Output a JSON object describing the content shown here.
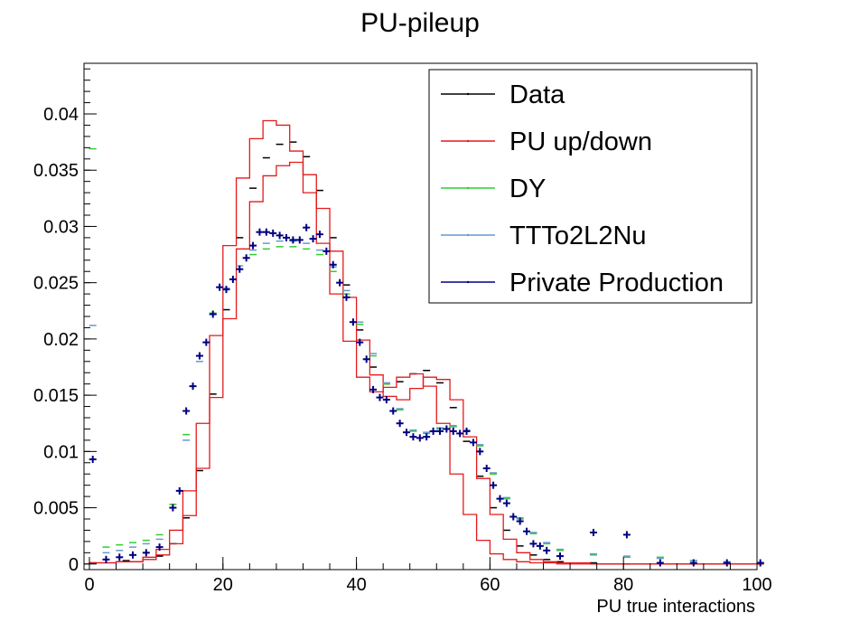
{
  "chart_data": {
    "type": "line",
    "title": "PU-pileup",
    "xlabel": "PU true interactions",
    "ylabel": "",
    "xlim": [
      0,
      100
    ],
    "ylim": [
      -0.0005,
      0.0445
    ],
    "x_ticks": [
      0,
      20,
      40,
      60,
      80,
      100
    ],
    "x_tick_labels": [
      "0",
      "20",
      "40",
      "60",
      "80",
      "100"
    ],
    "y_ticks": [
      0,
      0.005,
      0.01,
      0.015,
      0.02,
      0.025,
      0.03,
      0.035,
      0.04
    ],
    "y_tick_labels": [
      "0",
      "0.005",
      "0.01",
      "0.015",
      "0.02",
      "0.025",
      "0.03",
      "0.035",
      "0.04"
    ],
    "grid": false,
    "legend_position": "top-right",
    "legend": [
      {
        "label": "Data",
        "color": "#000000"
      },
      {
        "label": "PU up/down",
        "color": "#e31a1c"
      },
      {
        "label": "DY",
        "color": "#33cc33"
      },
      {
        "label": "TTTo2L2Nu",
        "color": "#6699cc"
      },
      {
        "label": "Private Production",
        "color": "#000080"
      }
    ],
    "bin_width": 1,
    "series": [
      {
        "name": "Data",
        "style": "markers",
        "color": "#000000",
        "x": [
          0,
          5,
          10,
          12,
          14,
          16,
          18,
          20,
          22,
          24,
          26,
          28,
          30,
          32,
          34,
          36,
          38,
          40,
          42,
          44,
          46,
          48,
          50,
          52,
          54,
          56,
          58,
          60,
          62,
          64,
          66,
          68,
          70,
          75,
          80,
          90,
          100
        ],
        "values": [
          0.0001,
          0.0003,
          0.0007,
          0.0018,
          0.0041,
          0.0083,
          0.0151,
          0.0226,
          0.029,
          0.0334,
          0.0361,
          0.0373,
          0.0375,
          0.0362,
          0.0332,
          0.029,
          0.0248,
          0.0208,
          0.0175,
          0.016,
          0.0162,
          0.0169,
          0.0172,
          0.0161,
          0.0139,
          0.0109,
          0.0078,
          0.005,
          0.003,
          0.0016,
          0.0008,
          0.0004,
          0.0002,
          0.0001,
          0.0,
          0.0,
          0.0
        ]
      },
      {
        "name": "PU up",
        "style": "step",
        "color": "#e31a1c",
        "x": [
          0,
          4,
          8,
          10,
          12,
          14,
          16,
          18,
          20,
          22,
          24,
          26,
          28,
          30,
          32,
          34,
          36,
          38,
          40,
          42,
          44,
          46,
          48,
          50,
          52,
          54,
          56,
          58,
          60,
          62,
          64,
          66,
          68,
          70,
          75,
          80,
          90,
          100
        ],
        "values": [
          0.0001,
          0.0002,
          0.0006,
          0.0013,
          0.003,
          0.0065,
          0.0125,
          0.0203,
          0.0283,
          0.0343,
          0.0378,
          0.0394,
          0.039,
          0.0367,
          0.033,
          0.0285,
          0.024,
          0.0198,
          0.0166,
          0.0153,
          0.0157,
          0.0166,
          0.0169,
          0.0158,
          0.0125,
          0.008,
          0.0044,
          0.0021,
          0.0009,
          0.0004,
          0.0002,
          0.0001,
          0.0001,
          0.0,
          0.0,
          0.0,
          0.0,
          0.0
        ]
      },
      {
        "name": "PU down",
        "style": "step",
        "color": "#e31a1c",
        "x": [
          0,
          4,
          8,
          10,
          12,
          14,
          16,
          18,
          20,
          22,
          24,
          26,
          28,
          30,
          32,
          34,
          36,
          38,
          40,
          42,
          44,
          46,
          48,
          50,
          52,
          54,
          56,
          58,
          60,
          62,
          64,
          66,
          68,
          70,
          75,
          80,
          90,
          100
        ],
        "values": [
          0.0001,
          0.0002,
          0.0004,
          0.0008,
          0.0018,
          0.0043,
          0.0085,
          0.0148,
          0.0218,
          0.028,
          0.0322,
          0.0345,
          0.0354,
          0.0357,
          0.0346,
          0.0316,
          0.0278,
          0.0237,
          0.0199,
          0.0168,
          0.0149,
          0.0146,
          0.0156,
          0.0166,
          0.0164,
          0.0146,
          0.0113,
          0.0076,
          0.0044,
          0.0022,
          0.001,
          0.0004,
          0.0002,
          0.0001,
          0.0,
          0.0,
          0.0,
          0.0
        ]
      },
      {
        "name": "DY",
        "style": "markers",
        "color": "#33cc33",
        "x": [
          0,
          2,
          4,
          6,
          8,
          10,
          12,
          14,
          16,
          18,
          20,
          22,
          24,
          26,
          28,
          30,
          32,
          34,
          36,
          38,
          40,
          42,
          44,
          46,
          48,
          50,
          52,
          54,
          56,
          58,
          60,
          62,
          64,
          66,
          68,
          70,
          75,
          80,
          85,
          90,
          95,
          100
        ],
        "values": [
          0.0369,
          0.0015,
          0.0017,
          0.0019,
          0.0021,
          0.0026,
          0.0053,
          0.0115,
          0.0185,
          0.0223,
          0.0245,
          0.0262,
          0.0275,
          0.028,
          0.0282,
          0.0282,
          0.028,
          0.0275,
          0.026,
          0.024,
          0.0213,
          0.0185,
          0.016,
          0.0137,
          0.0118,
          0.0116,
          0.012,
          0.0122,
          0.0118,
          0.0105,
          0.008,
          0.0058,
          0.004,
          0.0027,
          0.0018,
          0.0012,
          0.0008,
          0.0006,
          0.0006,
          0.0003,
          0.0002,
          0.0001
        ]
      },
      {
        "name": "TTTo2L2Nu",
        "style": "markers",
        "color": "#6699cc",
        "x": [
          0,
          2,
          4,
          6,
          8,
          10,
          12,
          14,
          16,
          18,
          20,
          22,
          24,
          26,
          28,
          30,
          32,
          34,
          36,
          38,
          40,
          42,
          44,
          46,
          48,
          50,
          52,
          54,
          56,
          58,
          60,
          62,
          64,
          66,
          68,
          70,
          75,
          80,
          85,
          90,
          95,
          100
        ],
        "values": [
          0.0212,
          0.001,
          0.0012,
          0.0015,
          0.0018,
          0.0022,
          0.005,
          0.011,
          0.018,
          0.0222,
          0.0245,
          0.0265,
          0.0279,
          0.0285,
          0.0287,
          0.0287,
          0.0285,
          0.0279,
          0.0264,
          0.0243,
          0.0215,
          0.0187,
          0.0161,
          0.0138,
          0.0119,
          0.0117,
          0.0121,
          0.0123,
          0.0119,
          0.0106,
          0.0081,
          0.0059,
          0.0041,
          0.0028,
          0.0019,
          0.0013,
          0.0009,
          0.0007,
          0.0005,
          0.0003,
          0.0002,
          0.0001
        ]
      },
      {
        "name": "Private Production",
        "style": "markers",
        "color": "#000080",
        "x": [
          0,
          2,
          4,
          6,
          8,
          10,
          12,
          13,
          14,
          15,
          16,
          17,
          18,
          19,
          20,
          21,
          22,
          23,
          24,
          25,
          26,
          27,
          28,
          29,
          30,
          31,
          32,
          33,
          34,
          35,
          36,
          37,
          38,
          39,
          40,
          41,
          42,
          43,
          44,
          45,
          46,
          47,
          48,
          49,
          50,
          51,
          52,
          53,
          54,
          55,
          56,
          57,
          58,
          59,
          60,
          61,
          62,
          63,
          64,
          65,
          66,
          67,
          68,
          70,
          75,
          80,
          85,
          90,
          95,
          100
        ],
        "values": [
          0.0093,
          0.0004,
          0.0006,
          0.0008,
          0.001,
          0.0015,
          0.005,
          0.0065,
          0.0136,
          0.0158,
          0.0185,
          0.0197,
          0.0222,
          0.0246,
          0.0244,
          0.0253,
          0.0262,
          0.0272,
          0.0283,
          0.0295,
          0.0295,
          0.0294,
          0.0292,
          0.029,
          0.0288,
          0.0288,
          0.0299,
          0.0289,
          0.0293,
          0.0278,
          0.0266,
          0.025,
          0.0237,
          0.0215,
          0.0197,
          0.0182,
          0.0155,
          0.0148,
          0.0146,
          0.0136,
          0.0125,
          0.0117,
          0.0113,
          0.0112,
          0.0113,
          0.0118,
          0.0118,
          0.012,
          0.0118,
          0.0116,
          0.0118,
          0.0108,
          0.01,
          0.0085,
          0.007,
          0.0058,
          0.0054,
          0.0042,
          0.0038,
          0.0029,
          0.0018,
          0.0016,
          0.0012,
          0.0007,
          0.0028,
          0.0026,
          0.0001,
          0.0001,
          0.0001,
          0.0001
        ]
      }
    ]
  }
}
